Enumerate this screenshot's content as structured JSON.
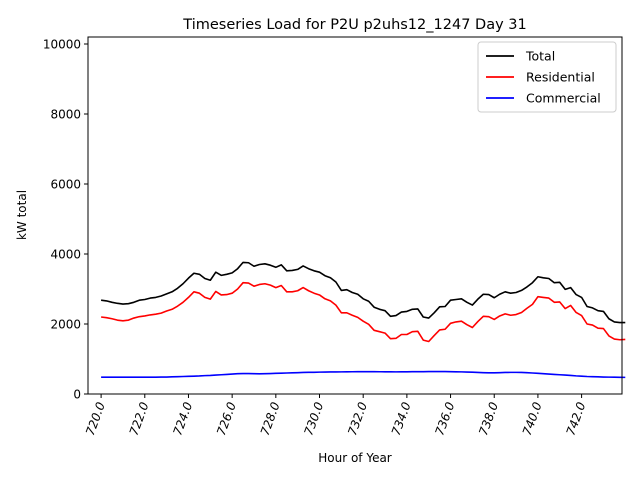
{
  "chart_data": {
    "type": "line",
    "title": "Timeseries Load for P2U p2uhs12_1247  Day 31",
    "xlabel": "Hour of Year",
    "ylabel": "kW total",
    "xlim": [
      719.4,
      743.85
    ],
    "ylim": [
      0,
      10200
    ],
    "x_start": 720.0,
    "x_step": 0.25,
    "x_ticks": [
      720,
      722,
      724,
      726,
      728,
      730,
      732,
      734,
      736,
      738,
      740,
      742
    ],
    "x_tick_labels": [
      "720.0",
      "722.0",
      "724.0",
      "726.0",
      "728.0",
      "730.0",
      "732.0",
      "734.0",
      "736.0",
      "738.0",
      "740.0",
      "742.0"
    ],
    "y_ticks": [
      0,
      2000,
      4000,
      6000,
      8000,
      10000
    ],
    "y_tick_labels": [
      "0",
      "2000",
      "4000",
      "6000",
      "8000",
      "10000"
    ],
    "legend_position": "top-right",
    "series": [
      {
        "name": "Total",
        "color": "#000000",
        "values": [
          2680,
          2660,
          2620,
          2590,
          2570,
          2580,
          2620,
          2680,
          2700,
          2740,
          2760,
          2800,
          2860,
          2920,
          3020,
          3150,
          3310,
          3450,
          3420,
          3300,
          3250,
          3480,
          3390,
          3420,
          3460,
          3580,
          3760,
          3750,
          3650,
          3700,
          3720,
          3680,
          3620,
          3690,
          3520,
          3530,
          3560,
          3660,
          3580,
          3520,
          3480,
          3380,
          3320,
          3200,
          2960,
          2980,
          2900,
          2850,
          2720,
          2650,
          2480,
          2420,
          2380,
          2220,
          2240,
          2340,
          2360,
          2420,
          2430,
          2200,
          2170,
          2320,
          2490,
          2500,
          2680,
          2700,
          2720,
          2620,
          2540,
          2710,
          2850,
          2840,
          2750,
          2850,
          2920,
          2880,
          2900,
          2960,
          3060,
          3180,
          3350,
          3320,
          3300,
          3180,
          3190,
          2990,
          3040,
          2840,
          2760,
          2500,
          2460,
          2380,
          2360,
          2150,
          2060,
          2040,
          2040
        ]
      },
      {
        "name": "Residential",
        "color": "#ff0000",
        "values": [
          2200,
          2180,
          2150,
          2110,
          2090,
          2110,
          2170,
          2210,
          2230,
          2260,
          2280,
          2310,
          2370,
          2420,
          2510,
          2620,
          2760,
          2920,
          2880,
          2760,
          2710,
          2930,
          2830,
          2840,
          2880,
          3000,
          3180,
          3170,
          3080,
          3130,
          3150,
          3110,
          3040,
          3100,
          2920,
          2920,
          2950,
          3040,
          2950,
          2880,
          2830,
          2720,
          2660,
          2540,
          2320,
          2320,
          2250,
          2190,
          2080,
          1990,
          1820,
          1780,
          1740,
          1580,
          1590,
          1700,
          1700,
          1780,
          1790,
          1540,
          1500,
          1670,
          1830,
          1850,
          2020,
          2060,
          2080,
          1980,
          1900,
          2070,
          2220,
          2210,
          2130,
          2230,
          2290,
          2250,
          2270,
          2330,
          2450,
          2560,
          2780,
          2760,
          2740,
          2620,
          2630,
          2440,
          2530,
          2330,
          2240,
          2000,
          1970,
          1880,
          1870,
          1660,
          1570,
          1550,
          1560
        ]
      },
      {
        "name": "Commercial",
        "color": "#0000ff",
        "values": [
          480,
          480,
          480,
          480,
          480,
          480,
          480,
          480,
          480,
          480,
          480,
          485,
          485,
          490,
          495,
          500,
          505,
          510,
          515,
          525,
          530,
          540,
          550,
          560,
          570,
          580,
          585,
          585,
          580,
          578,
          580,
          585,
          590,
          595,
          600,
          605,
          610,
          615,
          620,
          620,
          625,
          628,
          630,
          630,
          632,
          634,
          636,
          637,
          638,
          638,
          638,
          636,
          635,
          633,
          632,
          633,
          635,
          637,
          638,
          638,
          640,
          642,
          643,
          640,
          637,
          635,
          632,
          628,
          622,
          615,
          610,
          605,
          605,
          610,
          615,
          618,
          618,
          615,
          608,
          600,
          590,
          580,
          570,
          560,
          550,
          540,
          530,
          518,
          510,
          500,
          495,
          490,
          485,
          482,
          480,
          478,
          475
        ]
      }
    ]
  }
}
